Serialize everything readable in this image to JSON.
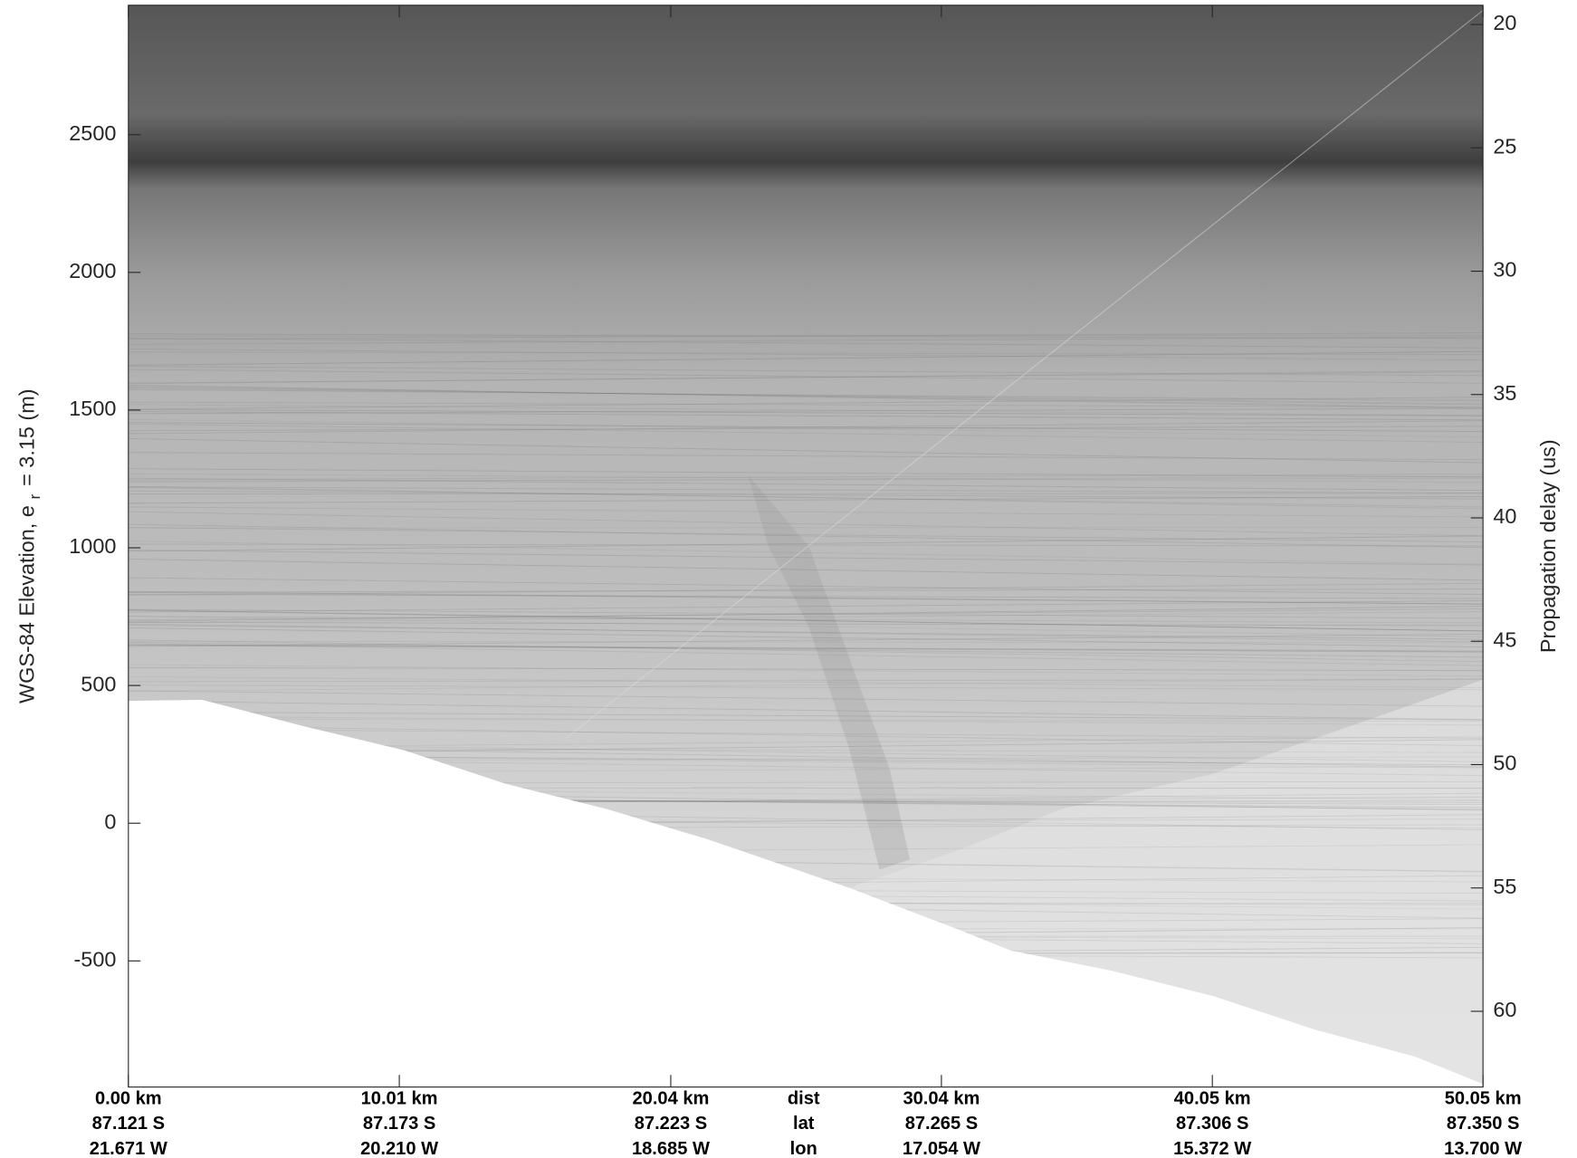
{
  "chart_data": {
    "type": "echogram",
    "ylabel": "WGS-84 Elevation, e",
    "ylabel_sub": "r",
    "ylabel_rest": "= 3.15 (m)",
    "y2label": "Propagation delay (us)",
    "xlim": [
      0,
      50.05
    ],
    "xticks": [
      {
        "value": 0,
        "label": "0.00 km"
      },
      {
        "value": 10.01,
        "label": "10.01 km"
      },
      {
        "value": 20.04,
        "label": "20.04 km"
      },
      {
        "value": 30.04,
        "label": "30.04 km"
      },
      {
        "value": 40.05,
        "label": "40.05 km"
      },
      {
        "value": 50.05,
        "label": "50.05 km"
      }
    ],
    "xtick_lat": [
      "87.121 S",
      "87.173 S",
      "87.223 S",
      "87.265 S",
      "87.306 S",
      "87.350 S"
    ],
    "xtick_lon": [
      "21.671 W",
      "20.210 W",
      "18.685 W",
      "17.054 W",
      "15.372 W",
      "13.700 W"
    ],
    "row_names": [
      "dist",
      "lat",
      "lon"
    ],
    "ylim": [
      -958,
      2970
    ],
    "yticks": [
      -500,
      0,
      500,
      1000,
      1500,
      2000,
      2500
    ],
    "y2lim": [
      19.22,
      63.07
    ],
    "y2ticks": [
      20,
      25,
      30,
      35,
      40,
      45,
      50,
      55,
      60
    ]
  }
}
